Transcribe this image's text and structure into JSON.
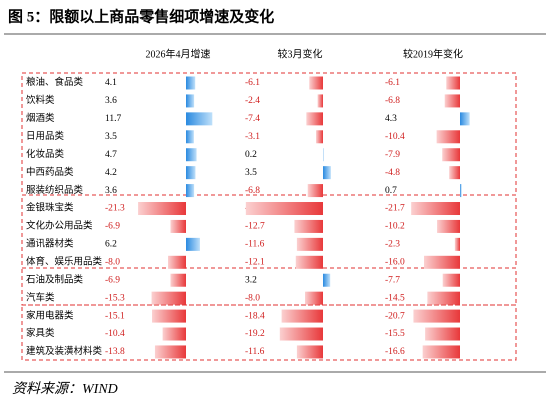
{
  "title": "图 5：限额以上商品零售细项增速及变化",
  "table": {
    "headers": [
      "2026年4月增速",
      "较3月变化",
      "较2019年变化"
    ],
    "rows": [
      [
        "粮油、食品类",
        "4.1",
        "-6.1",
        "-6.1"
      ],
      [
        "饮料类",
        "3.6",
        "-2.4",
        "-6.8"
      ],
      [
        "烟酒类",
        "11.7",
        "-7.4",
        "4.3"
      ],
      [
        "日用品类",
        "3.5",
        "-3.1",
        "-10.4"
      ],
      [
        "化妆品类",
        "4.7",
        "0.2",
        "-7.9"
      ],
      [
        "中西药品类",
        "4.2",
        "3.5",
        "-4.8"
      ],
      [
        "服装纺织品类",
        "3.6",
        "-6.8",
        "0.7"
      ],
      [
        "金银珠宝类",
        "-21.3",
        "-34.3",
        "-21.7"
      ],
      [
        "文化办公用品类",
        "-6.9",
        "-12.7",
        "-10.2"
      ],
      [
        "通讯器材类",
        "6.2",
        "-11.6",
        "-2.3"
      ],
      [
        "体育、娱乐用品类",
        "-8.0",
        "-12.1",
        "-16.0"
      ],
      [
        "石油及制品类",
        "-6.9",
        "3.2",
        "-7.7"
      ],
      [
        "汽车类",
        "-15.3",
        "-8.0",
        "-14.5"
      ],
      [
        "家用电器类",
        "-15.1",
        "-18.4",
        "-20.7"
      ],
      [
        "家具类",
        "-10.4",
        "-19.2",
        "-15.5"
      ],
      [
        "建筑及装潢材料类",
        "-13.8",
        "-11.6",
        "-16.6"
      ]
    ]
  },
  "source": "资料来源：WIND"
}
